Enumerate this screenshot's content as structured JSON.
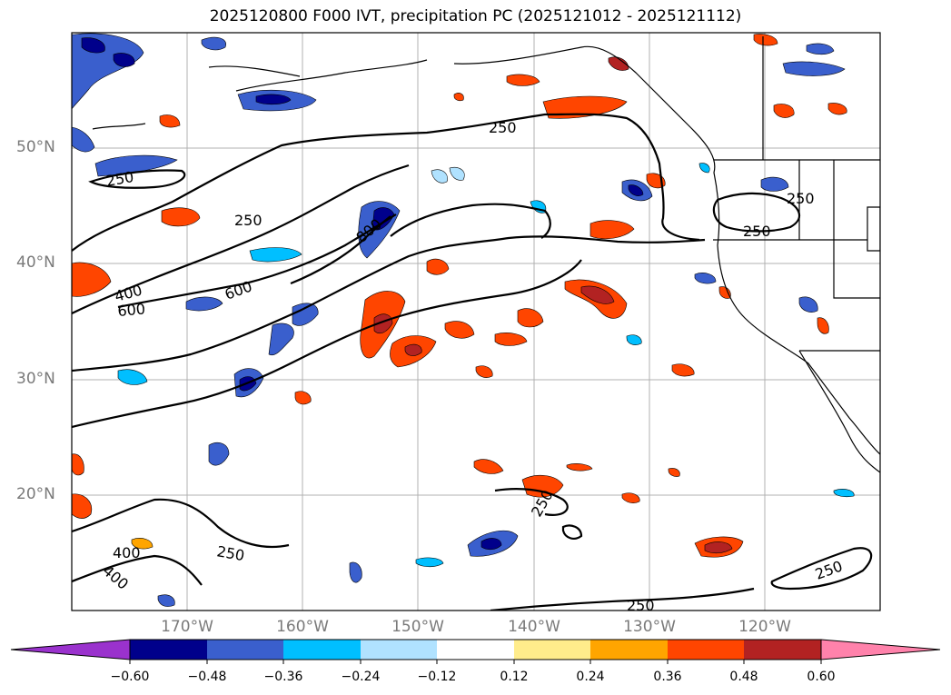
{
  "title": "2025120800 F000 IVT, precipitation PC (2025121012 - 2025121112)",
  "map": {
    "lat_labels": [
      "50°N",
      "40°N",
      "30°N",
      "20°N"
    ],
    "lon_labels": [
      "170°W",
      "160°W",
      "150°W",
      "140°W",
      "130°W",
      "120°W"
    ],
    "extent": {
      "lon_min": -180,
      "lon_max": -110,
      "lat_min": 10,
      "lat_max": 60
    },
    "ivt_contour_levels": [
      250,
      400,
      600,
      800
    ],
    "contour_labels": [
      "250",
      "250",
      "250",
      "250",
      "250",
      "250",
      "250",
      "250",
      "250",
      "400",
      "400",
      "400",
      "600",
      "600",
      "800"
    ]
  },
  "colorbar": {
    "ticks": [
      "−0.60",
      "−0.48",
      "−0.36",
      "−0.24",
      "−0.12",
      "0.12",
      "0.24",
      "0.36",
      "0.48",
      "0.60"
    ],
    "colors": [
      "#9a32cd",
      "#00008b",
      "#3a5fcd",
      "#00bfff",
      "#b0e2ff",
      "#ffffff",
      "#ffec8b",
      "#ffa500",
      "#ff4500",
      "#b22222",
      "#ff82ab"
    ]
  }
}
